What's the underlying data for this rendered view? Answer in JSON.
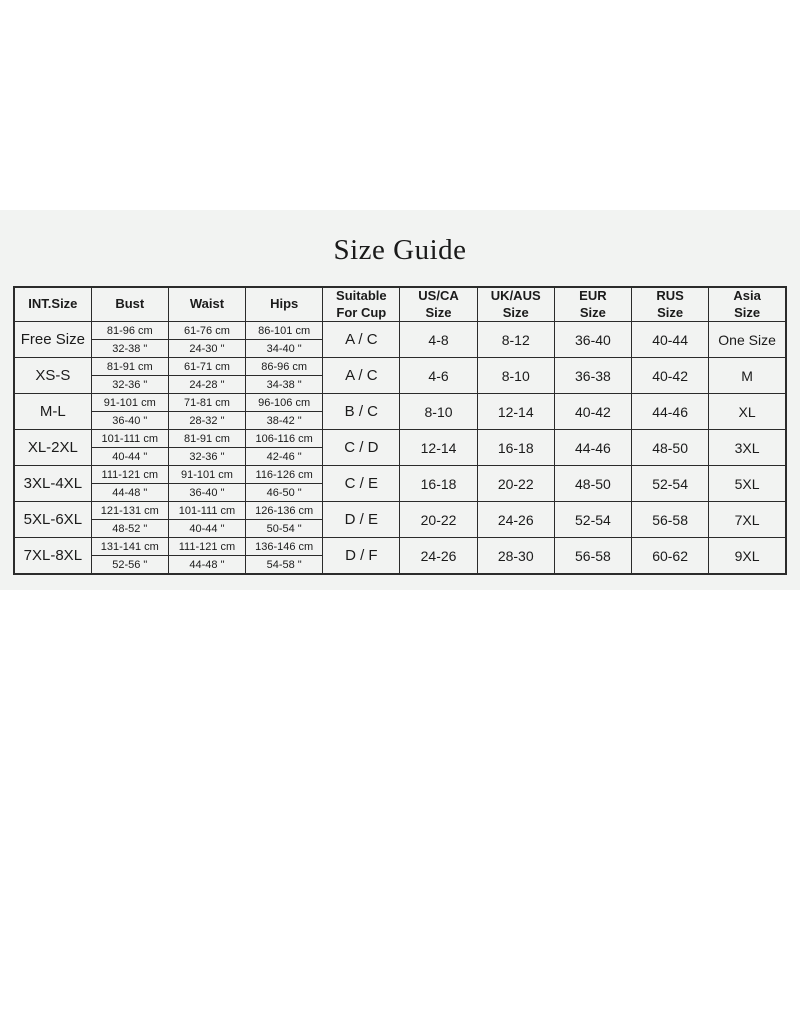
{
  "title": "Size Guide",
  "colors": {
    "panel_background": "#f2f3f2",
    "table_border": "#2b2b2b",
    "text": "#1b1b1b",
    "page_background": "#ffffff"
  },
  "table": {
    "columns": [
      "INT.Size",
      "Bust",
      "Waist",
      "Hips",
      "Suitable\nFor Cup",
      "US/CA\nSize",
      "UK/AUS\nSize",
      "EUR\nSize",
      "RUS\nSize",
      "Asia\nSize"
    ],
    "rows": [
      {
        "int_size": "Free Size",
        "bust_cm": "81-96 cm",
        "bust_in": "32-38 \"",
        "waist_cm": "61-76 cm",
        "waist_in": "24-30 \"",
        "hips_cm": "86-101 cm",
        "hips_in": "34-40 \"",
        "cup": "A / C",
        "us_ca": "4-8",
        "uk_aus": "8-12",
        "eur": "36-40",
        "rus": "40-44",
        "asia": "One Size"
      },
      {
        "int_size": "XS-S",
        "bust_cm": "81-91 cm",
        "bust_in": "32-36 \"",
        "waist_cm": "61-71 cm",
        "waist_in": "24-28 \"",
        "hips_cm": "86-96 cm",
        "hips_in": "34-38 \"",
        "cup": "A / C",
        "us_ca": "4-6",
        "uk_aus": "8-10",
        "eur": "36-38",
        "rus": "40-42",
        "asia": "M"
      },
      {
        "int_size": "M-L",
        "bust_cm": "91-101 cm",
        "bust_in": "36-40 \"",
        "waist_cm": "71-81 cm",
        "waist_in": "28-32 \"",
        "hips_cm": "96-106 cm",
        "hips_in": "38-42 \"",
        "cup": "B / C",
        "us_ca": "8-10",
        "uk_aus": "12-14",
        "eur": "40-42",
        "rus": "44-46",
        "asia": "XL"
      },
      {
        "int_size": "XL-2XL",
        "bust_cm": "101-111 cm",
        "bust_in": "40-44 \"",
        "waist_cm": "81-91 cm",
        "waist_in": "32-36 \"",
        "hips_cm": "106-116 cm",
        "hips_in": "42-46 \"",
        "cup": "C / D",
        "us_ca": "12-14",
        "uk_aus": "16-18",
        "eur": "44-46",
        "rus": "48-50",
        "asia": "3XL"
      },
      {
        "int_size": "3XL-4XL",
        "bust_cm": "111-121 cm",
        "bust_in": "44-48 \"",
        "waist_cm": "91-101 cm",
        "waist_in": "36-40 \"",
        "hips_cm": "116-126 cm",
        "hips_in": "46-50 \"",
        "cup": "C / E",
        "us_ca": "16-18",
        "uk_aus": "20-22",
        "eur": "48-50",
        "rus": "52-54",
        "asia": "5XL"
      },
      {
        "int_size": "5XL-6XL",
        "bust_cm": "121-131 cm",
        "bust_in": "48-52 \"",
        "waist_cm": "101-111 cm",
        "waist_in": "40-44 \"",
        "hips_cm": "126-136 cm",
        "hips_in": "50-54 \"",
        "cup": "D / E",
        "us_ca": "20-22",
        "uk_aus": "24-26",
        "eur": "52-54",
        "rus": "56-58",
        "asia": "7XL"
      },
      {
        "int_size": "7XL-8XL",
        "bust_cm": "131-141 cm",
        "bust_in": "52-56 \"",
        "waist_cm": "111-121 cm",
        "waist_in": "44-48 \"",
        "hips_cm": "136-146 cm",
        "hips_in": "54-58 \"",
        "cup": "D / F",
        "us_ca": "24-26",
        "uk_aus": "28-30",
        "eur": "56-58",
        "rus": "60-62",
        "asia": "9XL"
      }
    ]
  }
}
